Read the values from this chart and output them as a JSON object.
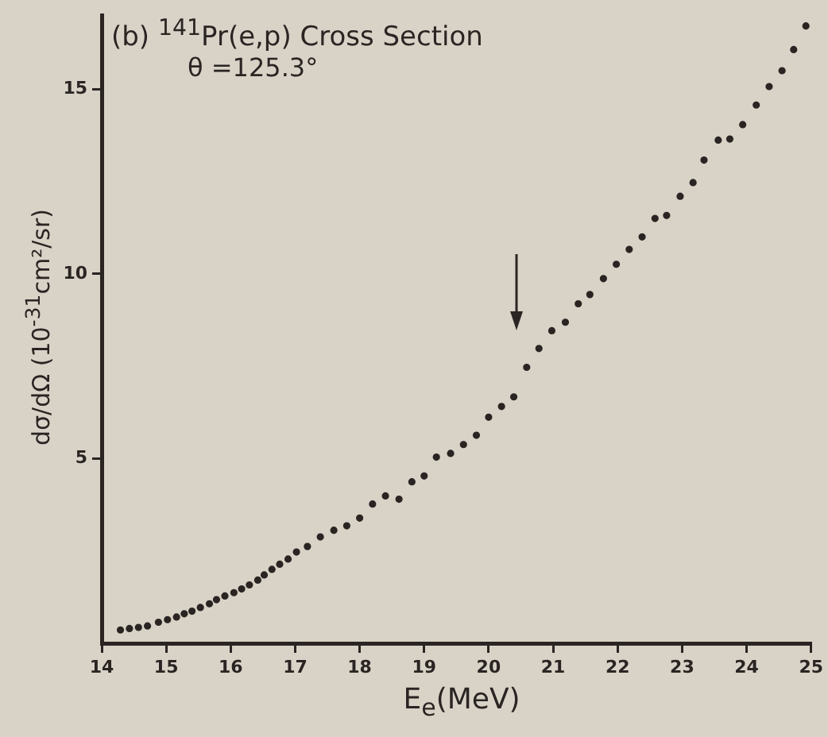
{
  "chart_data": {
    "type": "scatter",
    "title": "(b) $^{141}$Pr(e,p) Cross Section",
    "subtitle": "θ =125.3°",
    "xlabel": "E$_{e}$(MeV)",
    "ylabel": "dσ/dΩ (10$^{-31}$cm²/sr)",
    "x": [
      14.29,
      14.43,
      14.57,
      14.71,
      14.88,
      15.02,
      15.16,
      15.28,
      15.4,
      15.53,
      15.67,
      15.78,
      15.91,
      16.05,
      16.17,
      16.29,
      16.42,
      16.52,
      16.64,
      16.76,
      16.89,
      17.02,
      17.19,
      17.39,
      17.6,
      17.8,
      18.0,
      18.2,
      18.4,
      18.61,
      18.81,
      19.0,
      19.19,
      19.41,
      19.61,
      19.81,
      20.0,
      20.2,
      20.39,
      20.59,
      20.78,
      20.98,
      21.19,
      21.39,
      21.57,
      21.78,
      21.98,
      22.18,
      22.38,
      22.58,
      22.76,
      22.97,
      23.17,
      23.34,
      23.56,
      23.74,
      23.94,
      24.15,
      24.35,
      24.55,
      24.73,
      24.92
    ],
    "values": [
      0.36,
      0.4,
      0.43,
      0.47,
      0.57,
      0.64,
      0.71,
      0.8,
      0.87,
      0.97,
      1.07,
      1.18,
      1.28,
      1.37,
      1.47,
      1.58,
      1.71,
      1.85,
      2.0,
      2.14,
      2.28,
      2.47,
      2.62,
      2.88,
      3.06,
      3.18,
      3.39,
      3.77,
      3.99,
      3.9,
      4.37,
      4.53,
      5.04,
      5.14,
      5.38,
      5.63,
      6.12,
      6.41,
      6.67,
      7.47,
      7.98,
      8.46,
      8.69,
      9.19,
      9.44,
      9.87,
      10.26,
      10.66,
      11.0,
      11.5,
      11.58,
      12.1,
      12.47,
      13.08,
      13.62,
      13.65,
      14.04,
      14.57,
      15.07,
      15.5,
      16.07,
      16.71
    ],
    "color": "#2a2523",
    "marker": "circle",
    "xlim": [
      14,
      25
    ],
    "xticks": [
      14,
      15,
      16,
      17,
      18,
      19,
      20,
      21,
      22,
      23,
      24,
      25
    ],
    "ylim": [
      0,
      17
    ],
    "yticks": [
      5,
      10,
      15
    ],
    "grid": false,
    "legend": false
  }
}
